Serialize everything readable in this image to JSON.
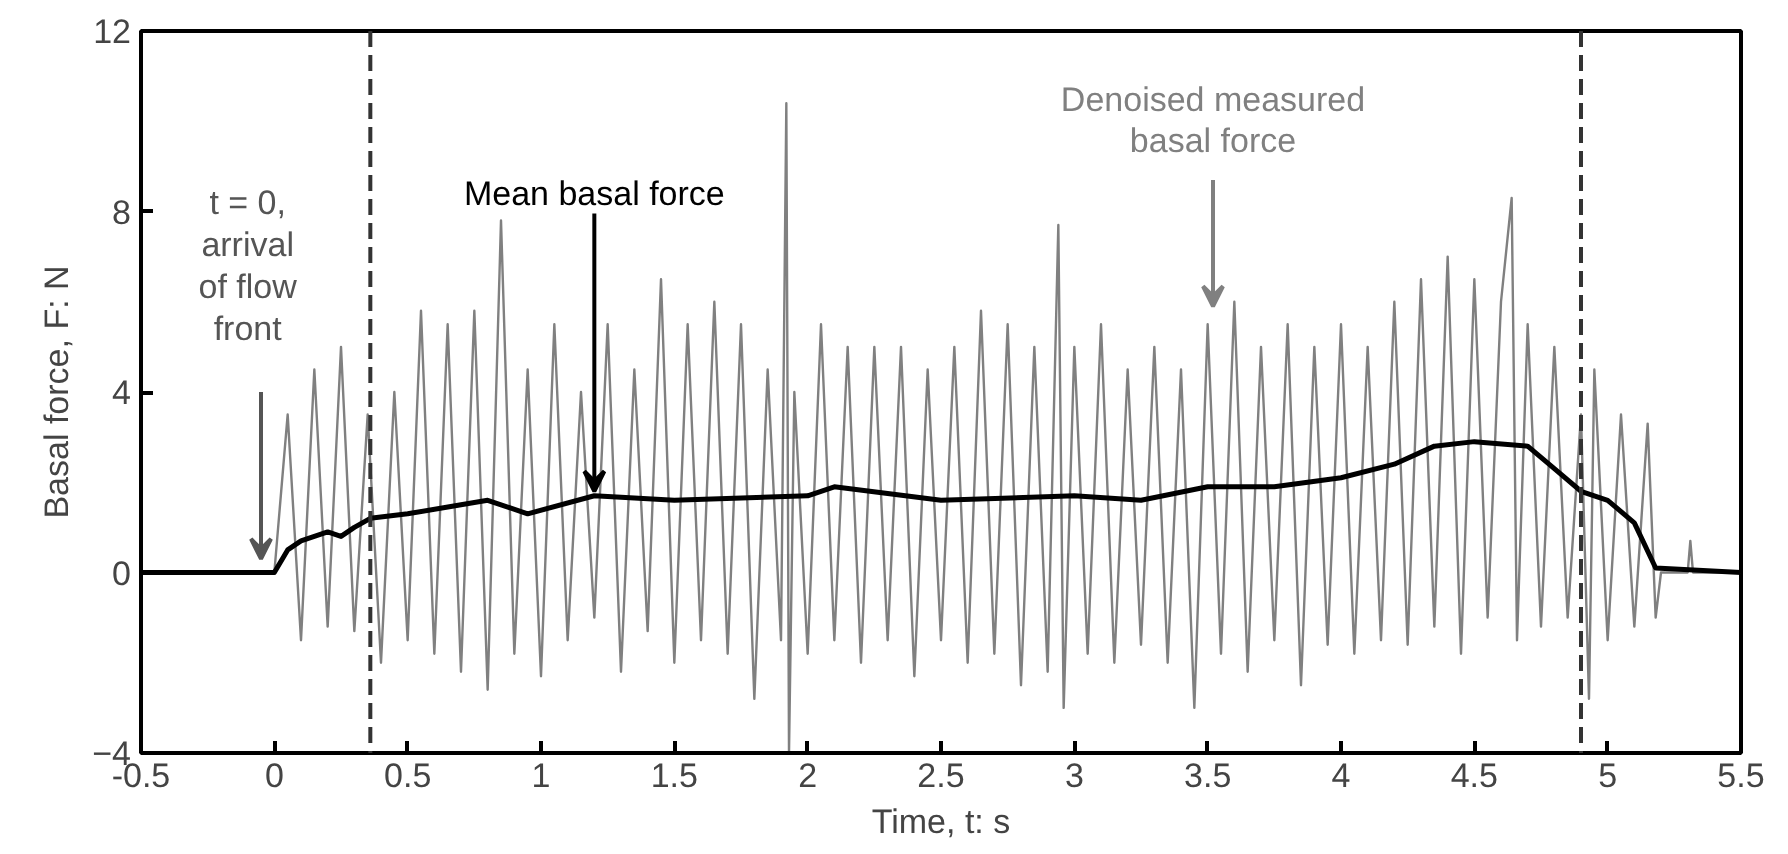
{
  "chart_data": {
    "type": "line",
    "xlabel": "Time, t: s",
    "ylabel": "Basal force, F: N",
    "xlim": [
      -0.5,
      5.5
    ],
    "xticks": [
      {
        "value": -0.5,
        "label": "-0.5"
      },
      0,
      0.5,
      1,
      1.5,
      2,
      2.5,
      3,
      3.5,
      4,
      4.5,
      5,
      5.5
    ],
    "ylim": [
      -4,
      12
    ],
    "yticks": [
      -4,
      0,
      4,
      8,
      12
    ],
    "grid": false,
    "series": [
      {
        "color": "#808080",
        "x": [
          -0.5,
          0.0,
          0.05,
          0.1,
          0.15,
          0.2,
          0.25,
          0.3,
          0.35,
          0.4,
          0.45,
          0.5,
          0.55,
          0.6,
          0.65,
          0.7,
          0.75,
          0.8,
          0.85,
          0.9,
          0.95,
          1.0,
          1.05,
          1.1,
          1.15,
          1.2,
          1.25,
          1.3,
          1.35,
          1.4,
          1.45,
          1.5,
          1.55,
          1.6,
          1.65,
          1.7,
          1.75,
          1.8,
          1.85,
          1.9,
          1.92,
          1.93,
          1.95,
          2.0,
          2.05,
          2.1,
          2.15,
          2.2,
          2.25,
          2.3,
          2.35,
          2.4,
          2.45,
          2.5,
          2.55,
          2.6,
          2.65,
          2.7,
          2.75,
          2.8,
          2.85,
          2.9,
          2.94,
          2.96,
          3.0,
          3.05,
          3.1,
          3.15,
          3.2,
          3.25,
          3.3,
          3.35,
          3.4,
          3.45,
          3.5,
          3.55,
          3.6,
          3.65,
          3.7,
          3.75,
          3.8,
          3.85,
          3.9,
          3.95,
          4.0,
          4.05,
          4.1,
          4.15,
          4.2,
          4.25,
          4.3,
          4.35,
          4.4,
          4.45,
          4.5,
          4.55,
          4.6,
          4.64,
          4.66,
          4.7,
          4.75,
          4.8,
          4.85,
          4.9,
          4.93,
          4.95,
          5.0,
          5.05,
          5.1,
          5.15,
          5.18,
          5.2,
          5.3,
          5.31,
          5.32,
          5.5
        ],
        "values": [
          0,
          0,
          3.5,
          -1.5,
          4.5,
          -1.2,
          5.0,
          -1.3,
          3.5,
          -2.0,
          4.0,
          -1.5,
          5.8,
          -1.8,
          5.5,
          -2.2,
          5.8,
          -2.6,
          7.8,
          -1.8,
          4.5,
          -2.3,
          5.5,
          -1.5,
          4.0,
          -1.0,
          5.5,
          -2.2,
          4.5,
          -1.3,
          6.5,
          -2.0,
          5.5,
          -1.5,
          6.0,
          -1.8,
          5.5,
          -2.8,
          4.5,
          -1.5,
          10.4,
          -4.0,
          4.0,
          -1.8,
          5.5,
          -1.5,
          5.0,
          -2.0,
          5.0,
          -1.5,
          5.0,
          -2.3,
          4.5,
          -1.5,
          5.0,
          -2.0,
          5.8,
          -1.8,
          5.5,
          -2.5,
          5.0,
          -2.2,
          7.7,
          -3.0,
          5.0,
          -1.8,
          5.5,
          -2.0,
          4.5,
          -1.6,
          5.0,
          -2.0,
          4.5,
          -3.0,
          5.5,
          -1.8,
          6.0,
          -2.2,
          5.0,
          -1.5,
          5.5,
          -2.5,
          5.0,
          -1.6,
          5.5,
          -1.8,
          5.0,
          -1.5,
          6.0,
          -1.6,
          6.5,
          -1.2,
          7.0,
          -1.8,
          6.5,
          -1.0,
          6.0,
          8.3,
          -1.5,
          5.5,
          -1.2,
          5.0,
          -1.0,
          3.5,
          -2.8,
          4.5,
          -1.5,
          3.5,
          -1.2,
          3.3,
          -1.0,
          0.0,
          0.0,
          0.7,
          0.0,
          0.0
        ]
      },
      {
        "color": "#000000",
        "x": [
          -0.5,
          0.0,
          0.05,
          0.1,
          0.2,
          0.25,
          0.3,
          0.36,
          0.5,
          0.7,
          0.8,
          0.95,
          1.2,
          1.5,
          2.0,
          2.1,
          2.5,
          3.0,
          3.25,
          3.5,
          3.75,
          4.0,
          4.2,
          4.35,
          4.5,
          4.7,
          4.8,
          4.9,
          5.0,
          5.1,
          5.18,
          5.5
        ],
        "values": [
          0,
          0,
          0.5,
          0.7,
          0.9,
          0.8,
          1.0,
          1.2,
          1.3,
          1.5,
          1.6,
          1.3,
          1.7,
          1.6,
          1.7,
          1.9,
          1.6,
          1.7,
          1.6,
          1.9,
          1.9,
          2.1,
          2.4,
          2.8,
          2.9,
          2.8,
          2.3,
          1.8,
          1.6,
          1.1,
          0.1,
          0
        ]
      }
    ],
    "ref_lines": [
      {
        "axis": "x",
        "value": 0.36,
        "line_style": "dashed",
        "color": "#333333"
      },
      {
        "axis": "x",
        "value": 4.9,
        "line_style": "dashed",
        "color": "#333333"
      }
    ],
    "annotations": [
      "t = 0,\narrival\nof flow\nfront",
      {
        "text": "Mean basal force",
        "x": 1.2,
        "y": 1.8
      },
      "Denoised measured\nbasal force"
    ]
  }
}
